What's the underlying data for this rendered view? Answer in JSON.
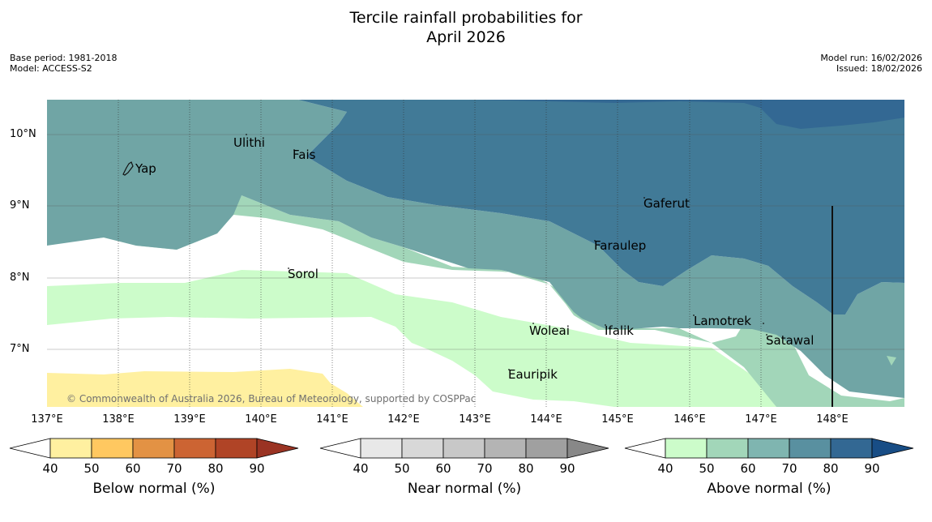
{
  "title_line1": "Tercile rainfall probabilities for",
  "title_line2": "April 2026",
  "base_period": "Base period: 1981-2018",
  "model": "Model: ACCESS-S2",
  "model_run": "Model run: 16/02/2026",
  "issued": "Issued: 18/02/2026",
  "copyright": "© Commonwealth of Australia 2026, Bureau of Meteorology, supported by COSPPac",
  "lat_labels": [
    "10°N",
    "9°N",
    "8°N",
    "7°N"
  ],
  "lon_labels": [
    "137°E",
    "138°E",
    "139°E",
    "140°E",
    "141°E",
    "142°E",
    "143°E",
    "144°E",
    "145°E",
    "146°E",
    "147°E",
    "148°E"
  ],
  "places": {
    "yap": "Yap",
    "ulithi": "Ulithi",
    "fais": "Fais",
    "gaferut": "Gaferut",
    "faraulep": "Faraulep",
    "sorol": "Sorol",
    "lamotrek": "Lamotrek",
    "woleai": "Woleai",
    "ifalik": "Ifalik",
    "satawal": "Satawal",
    "eauripik": "Eauripik"
  },
  "legends": [
    {
      "title": "Below normal (%)",
      "ticks": [
        "40",
        "50",
        "60",
        "70",
        "80",
        "90"
      ],
      "colors": [
        "#ffffff",
        "#fff0a0",
        "#ffc860",
        "#e39244",
        "#cc6433",
        "#b04426",
        "#9a3323"
      ]
    },
    {
      "title": "Near normal (%)",
      "ticks": [
        "40",
        "50",
        "60",
        "70",
        "80",
        "90"
      ],
      "colors": [
        "#ffffff",
        "#e8e8e8",
        "#d8d8d8",
        "#c8c8c8",
        "#b4b4b4",
        "#a0a0a0",
        "#888888"
      ]
    },
    {
      "title": "Above normal (%)",
      "ticks": [
        "40",
        "50",
        "60",
        "70",
        "80",
        "90"
      ],
      "colors": [
        "#ffffff",
        "#ccfcca",
        "#a2d6b9",
        "#7fb5b0",
        "#5990a0",
        "#336893",
        "#184d85"
      ]
    }
  ]
}
